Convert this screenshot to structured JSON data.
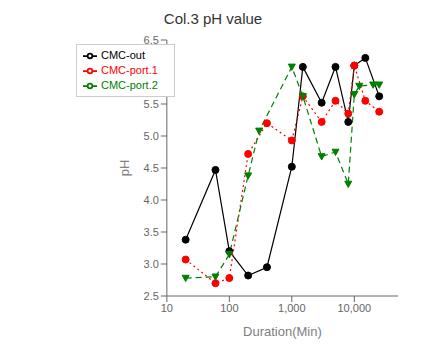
{
  "chart_data": {
    "type": "line",
    "title": "Col.3 pH value",
    "x_label": "Duration(Min)",
    "y_label": "pH",
    "log": "x",
    "xlim": [
      10,
      50000
    ],
    "xticks": [
      10,
      100,
      {
        "value": 1000,
        "label": "1,000"
      },
      {
        "value": 10000,
        "label": "10,000"
      }
    ],
    "ylim": [
      2.5,
      6.5
    ],
    "yticks": [
      2.5,
      {
        "value": 3,
        "label": "3.0"
      },
      3.5,
      {
        "value": 4,
        "label": "4.0"
      },
      4.5,
      {
        "value": 5,
        "label": "5.0"
      },
      5.5,
      {
        "value": 6,
        "label": "6.0"
      },
      6.5
    ],
    "grid": false,
    "legend": "upper left",
    "series": [
      {
        "name": "CMC-out",
        "color": "black",
        "marker": "circle",
        "line_style": "solid",
        "x": [
          20,
          60,
          100,
          200,
          400,
          1000,
          1500,
          3000,
          5000,
          8000,
          10000,
          15000,
          25000
        ],
        "values": [
          3.38,
          4.47,
          3.2,
          2.82,
          2.95,
          4.52,
          6.08,
          5.52,
          6.08,
          5.22,
          6.1,
          6.22,
          5.62
        ]
      },
      {
        "name": "CMC-port.1",
        "color": "red",
        "marker": "circle",
        "line_style": "dotted",
        "x": [
          20,
          60,
          100,
          200,
          400,
          1000,
          1500,
          3000,
          5000,
          8000,
          10000,
          15000,
          25000
        ],
        "values": [
          3.07,
          2.7,
          2.78,
          4.72,
          5.2,
          4.93,
          5.62,
          5.22,
          5.55,
          5.35,
          6.1,
          5.55,
          5.38
        ]
      },
      {
        "name": "CMC-port.2",
        "color": "green",
        "marker": "triangle-down",
        "line_style": "dashed",
        "x": [
          20,
          60,
          100,
          200,
          300,
          1000,
          1500,
          3000,
          5000,
          8000,
          10000,
          12000,
          20000,
          25000
        ],
        "values": [
          2.78,
          2.8,
          3.15,
          4.38,
          5.08,
          6.08,
          5.62,
          4.68,
          4.75,
          4.25,
          5.65,
          5.78,
          5.8,
          5.8
        ]
      }
    ]
  }
}
